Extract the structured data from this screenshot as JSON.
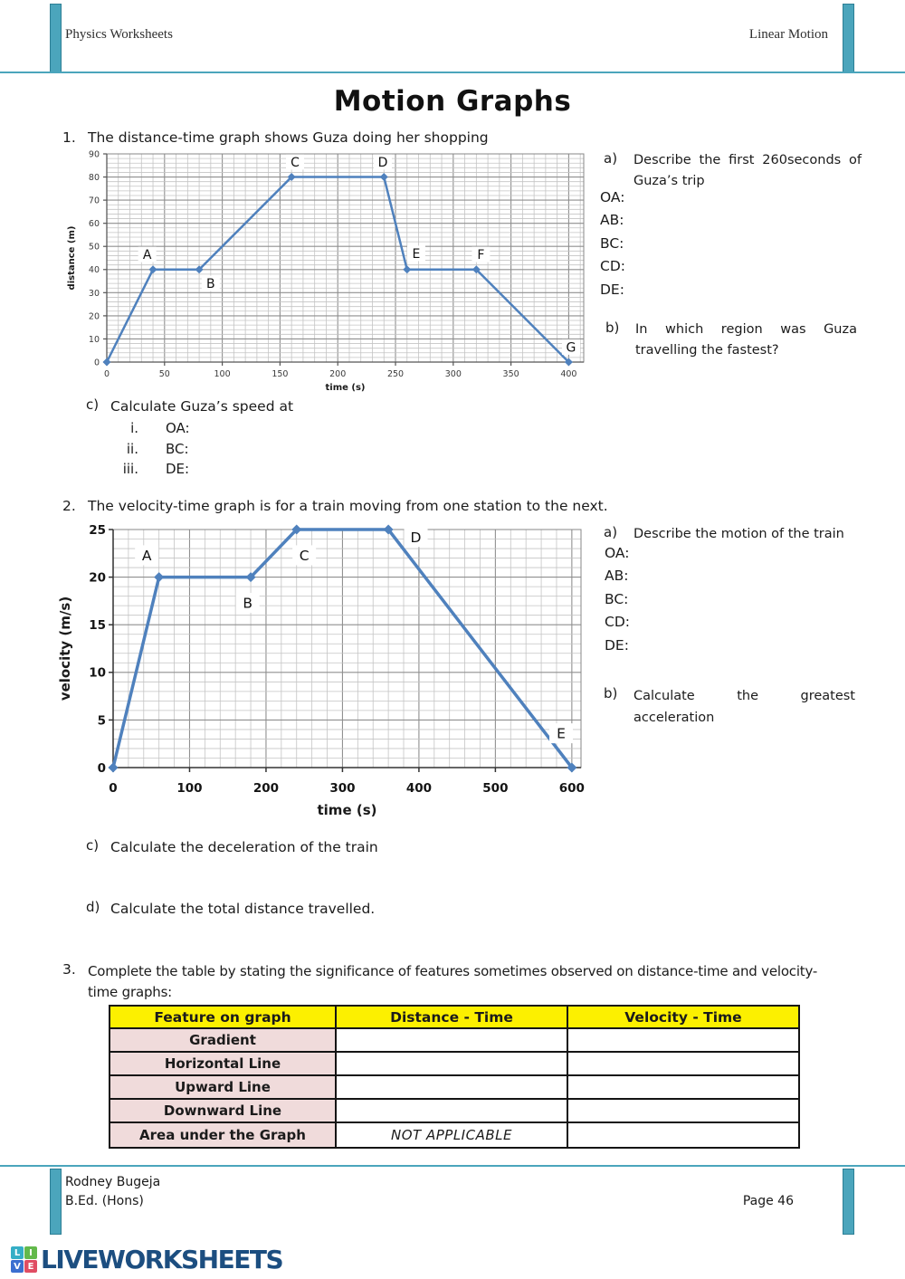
{
  "header": {
    "left": "Physics Worksheets",
    "right": "Linear Motion"
  },
  "title": "Motion Graphs",
  "q1": {
    "number": "1.",
    "prompt": "The distance-time graph shows Guza doing her shopping",
    "a_label": "a)",
    "a_text": "Describe the first 260seconds of Guza’s trip",
    "segments": [
      "OA:",
      "AB:",
      "BC:",
      "CD:",
      "DE:"
    ],
    "b_label": "b)",
    "b_text": "In which region was Guza travelling the fastest?",
    "c_label": "c)",
    "c_text": "Calculate Guza’s speed at",
    "c_items": [
      {
        "num": "i.",
        "label": "OA:"
      },
      {
        "num": "ii.",
        "label": "BC:"
      },
      {
        "num": "iii.",
        "label": "DE:"
      }
    ]
  },
  "q2": {
    "number": "2.",
    "prompt": "The velocity-time graph is for a train moving from one station to the next.",
    "a_label": "a)",
    "a_text": "Describe the motion of the train",
    "segments": [
      "OA:",
      "AB:",
      "BC:",
      "CD:",
      "DE:"
    ],
    "b_label": "b)",
    "b_text": "Calculate the greatest acceleration",
    "c_label": "c)",
    "c_text": "Calculate the deceleration of the train",
    "d_label": "d)",
    "d_text": "Calculate the total distance travelled."
  },
  "q3": {
    "number": "3.",
    "prompt_line1": "Complete the table by stating the significance of features sometimes observed on distance-time and velocity-",
    "prompt_line2": "time graphs:",
    "table": {
      "headers": [
        "Feature on graph",
        "Distance - Time",
        "Velocity - Time"
      ],
      "rows": [
        {
          "feature": "Gradient",
          "distance_time": "",
          "velocity_time": ""
        },
        {
          "feature": "Horizontal Line",
          "distance_time": "",
          "velocity_time": ""
        },
        {
          "feature": "Upward Line",
          "distance_time": "",
          "velocity_time": ""
        },
        {
          "feature": "Downward Line",
          "distance_time": "",
          "velocity_time": ""
        },
        {
          "feature": "Area under the Graph",
          "distance_time": "NOT APPLICABLE",
          "velocity_time": ""
        }
      ]
    }
  },
  "footer": {
    "author_line1": "Rodney Bugeja",
    "author_line2": "B.Ed. (Hons)",
    "page_label": "Page 46"
  },
  "logo": {
    "text": "LIVEWORKSHEETS",
    "tiles": [
      {
        "letter": "L",
        "color": "#35AEC6"
      },
      {
        "letter": "I",
        "color": "#63B94B"
      },
      {
        "letter": "V",
        "color": "#3B6FD0"
      },
      {
        "letter": "E",
        "color": "#E04D63"
      }
    ]
  },
  "colors": {
    "accent_teal": "#4BA5BC",
    "logo_blue": "#1C4E80",
    "table_header_yellow": "#FCF000",
    "table_feature_pink": "#F0DBDB",
    "chart_line_blue": "#4F81BD"
  },
  "chart_data": [
    {
      "type": "line",
      "title": "",
      "xlabel": "time (s)",
      "ylabel": "distance (m)",
      "xlim": [
        0,
        413
      ],
      "ylim": [
        0,
        90
      ],
      "x_minor": 10,
      "x_major": 50,
      "y_minor": 2,
      "y_major": 10,
      "xticks": [
        0,
        50,
        100,
        150,
        200,
        250,
        300,
        350,
        400
      ],
      "yticks": [
        0,
        10,
        20,
        30,
        40,
        50,
        60,
        70,
        80,
        90
      ],
      "line_color": "#4F81BD",
      "points_x": [
        0,
        40,
        80,
        160,
        240,
        260,
        320,
        400
      ],
      "points_y": [
        0,
        40,
        40,
        80,
        80,
        40,
        40,
        0
      ],
      "point_labels": [
        {
          "text": "A",
          "x": 35,
          "y": 46.5
        },
        {
          "text": "B",
          "x": 90,
          "y": 34
        },
        {
          "text": "C",
          "x": 163,
          "y": 86.5
        },
        {
          "text": "D",
          "x": 239,
          "y": 86.5
        },
        {
          "text": "E",
          "x": 268,
          "y": 47
        },
        {
          "text": "F",
          "x": 324,
          "y": 46.5
        },
        {
          "text": "G",
          "x": 402,
          "y": 6.5
        }
      ]
    },
    {
      "type": "line",
      "title": "",
      "xlabel": "time (s)",
      "ylabel": "velocity (m/s)",
      "xlim": [
        0,
        612
      ],
      "ylim": [
        0,
        25
      ],
      "x_minor": 20,
      "x_major": 100,
      "y_minor": 1,
      "y_major": 5,
      "xticks": [
        0,
        100,
        200,
        300,
        400,
        500,
        600
      ],
      "yticks": [
        0,
        5,
        10,
        15,
        20,
        25
      ],
      "line_color": "#4F81BD",
      "points_x": [
        0,
        60,
        180,
        240,
        360,
        600
      ],
      "points_y": [
        0,
        20,
        20,
        25,
        25,
        0
      ],
      "point_labels": [
        {
          "text": "A",
          "x": 44,
          "y": 22.3
        },
        {
          "text": "B",
          "x": 176,
          "y": 17.3
        },
        {
          "text": "C",
          "x": 250,
          "y": 22.3
        },
        {
          "text": "D",
          "x": 396,
          "y": 24.2
        },
        {
          "text": "E",
          "x": 586,
          "y": 3.6
        }
      ]
    }
  ]
}
